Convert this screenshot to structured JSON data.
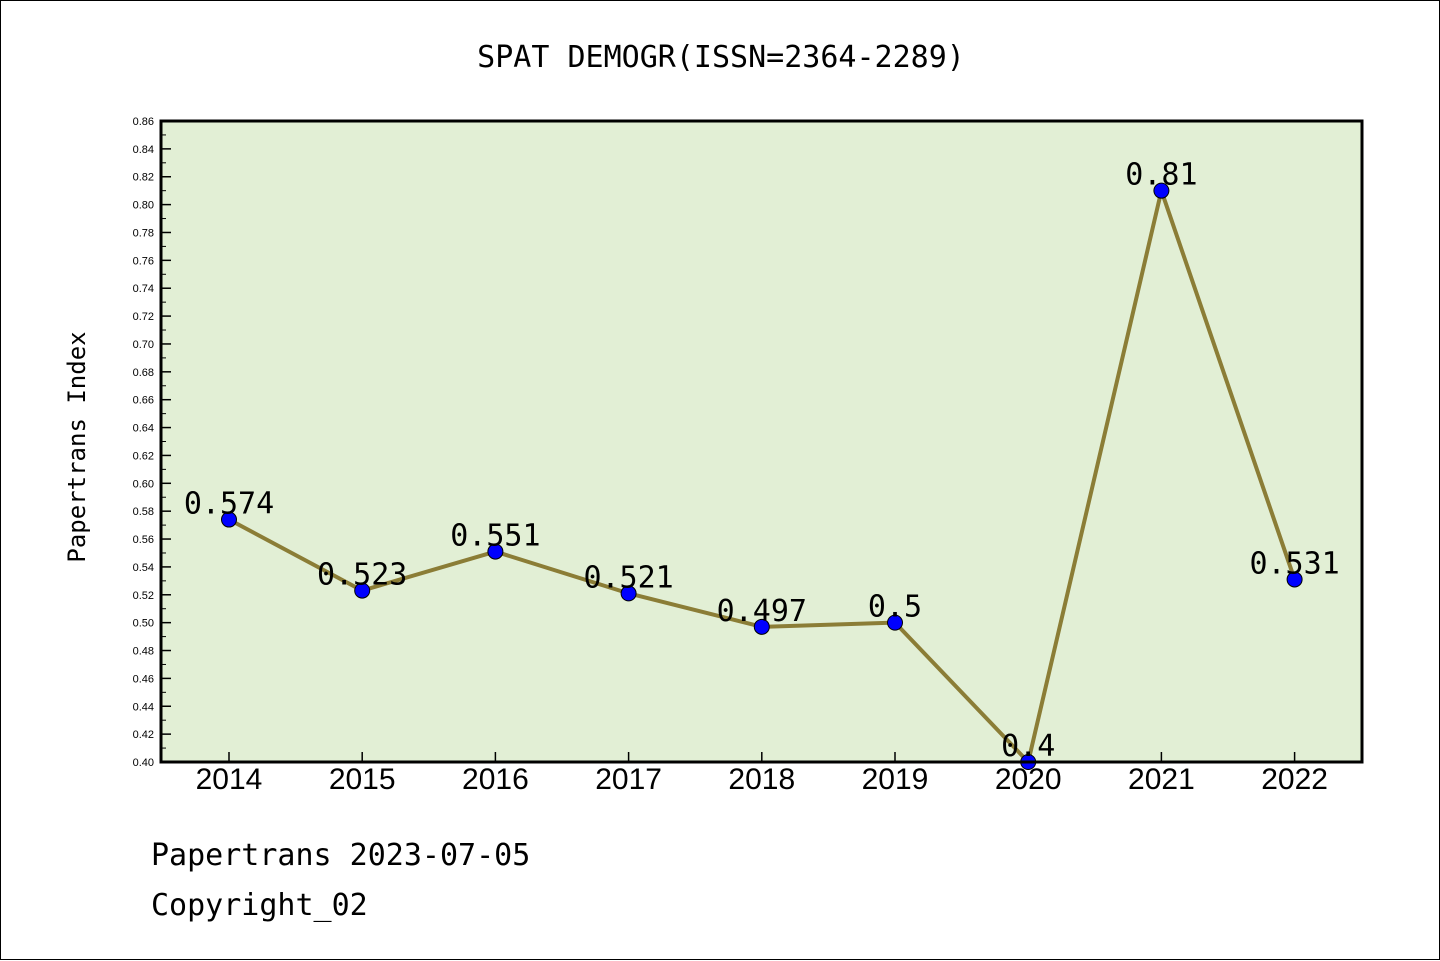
{
  "chart_data": {
    "type": "line",
    "title": "SPAT DEMOGR(ISSN=2364-2289)",
    "xlabel": "",
    "ylabel": "Papertrans Index",
    "categories": [
      "2014",
      "2015",
      "2016",
      "2017",
      "2018",
      "2019",
      "2020",
      "2021",
      "2022"
    ],
    "series": [
      {
        "values": [
          0.574,
          0.523,
          0.551,
          0.521,
          0.497,
          0.5,
          0.4,
          0.81,
          0.531
        ]
      }
    ],
    "data_labels": [
      "0.574",
      "0.523",
      "0.551",
      "0.521",
      "0.497",
      "0.5",
      "0.4",
      "0.81",
      "0.531"
    ],
    "ylim": [
      0.4,
      0.86
    ],
    "yticks": [
      "0.40",
      "0.42",
      "0.44",
      "0.46",
      "0.48",
      "0.50",
      "0.52",
      "0.54",
      "0.56",
      "0.58",
      "0.60",
      "0.62",
      "0.64",
      "0.66",
      "0.68",
      "0.70",
      "0.72",
      "0.74",
      "0.76",
      "0.78",
      "0.80",
      "0.82",
      "0.84",
      "0.86"
    ],
    "grid": false,
    "colors": {
      "plot_background": "#e2efd5",
      "line": "#8b7d36",
      "marker": "#0000ff"
    }
  },
  "footer": {
    "line1": "Papertrans 2023-07-05",
    "line2": "Copyright_02"
  }
}
